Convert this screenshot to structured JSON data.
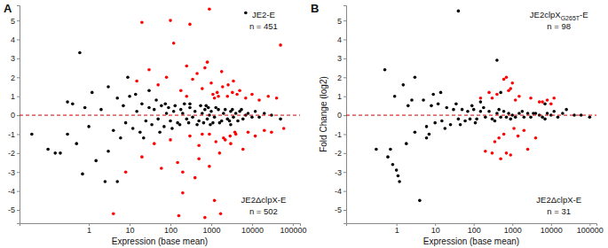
{
  "chart_data": [
    {
      "type": "scatter",
      "title": "A",
      "xlabel": "Expression (base mean)",
      "log": "x",
      "xlim": [
        0.02,
        150000
      ],
      "ylim": [
        -5.7,
        5.8
      ],
      "xticks": [
        1,
        10,
        100,
        1000,
        10000,
        100000
      ],
      "yticks": [
        -5,
        -4,
        -3,
        -2,
        -1,
        0,
        1,
        2,
        3,
        4,
        5
      ],
      "reference_lines": [
        {
          "y": 0,
          "color": "#cc0000",
          "line_style": "dashed"
        }
      ],
      "annotations": {
        "top": [
          "JE2-E",
          "n = 451"
        ],
        "bottom": [
          "JE2ΔclpX-E",
          "n = 502"
        ]
      },
      "series": [
        {
          "color": "#000000",
          "marker": "circle",
          "x": [
            0.04,
            0.1,
            0.2,
            0.3,
            0.5,
            0.6,
            0.8,
            1,
            1.2,
            1.5,
            2,
            2.5,
            3,
            4,
            5,
            6,
            7,
            8,
            10,
            12,
            15,
            18,
            20,
            25,
            30,
            35,
            40,
            50,
            60,
            70,
            80,
            90,
            100,
            120,
            150,
            180,
            200,
            250,
            300,
            350,
            400,
            500,
            600,
            700,
            800,
            900,
            1000,
            1200,
            1500,
            1800,
            2000,
            2500,
            3000,
            3500,
            4000,
            5000,
            6000,
            7000,
            8000,
            10000,
            12000,
            15000,
            20000,
            30000,
            50000,
            0.15,
            0.4,
            0.7,
            3,
            9,
            14,
            22,
            45,
            55,
            75,
            110,
            130,
            170,
            220,
            280,
            450,
            550,
            650,
            750,
            850,
            950,
            1100,
            1300,
            1600,
            2200,
            2800,
            3300,
            4500,
            5500,
            7000,
            0.3,
            5,
            30,
            300,
            3000
          ],
          "values": [
            -1.0,
            -1.8,
            -2.0,
            0.7,
            -1.5,
            3.3,
            0.4,
            -0.6,
            1.2,
            -2.4,
            0.3,
            -3.5,
            1.5,
            -0.8,
            0.9,
            -1.2,
            0.5,
            -0.4,
            1.0,
            -0.7,
            0.2,
            -0.9,
            0.6,
            -0.3,
            0.4,
            -0.5,
            0.3,
            -0.2,
            0.5,
            -0.6,
            0.1,
            0.4,
            -0.3,
            0.2,
            -0.4,
            0.3,
            0.1,
            -0.2,
            0.4,
            -0.1,
            0.2,
            -0.3,
            0.1,
            0.3,
            -0.2,
            0.0,
            0.2,
            -0.1,
            0.3,
            -0.3,
            0.1,
            -0.2,
            0.2,
            -0.1,
            0.1,
            0.2,
            -0.2,
            0.0,
            0.1,
            -0.1,
            0.2,
            -0.1,
            0.1,
            0.0,
            -0.2,
            -2.0,
            0.6,
            -3.1,
            -1.9,
            2.0,
            1.1,
            -1.2,
            0.8,
            -0.9,
            0.6,
            -0.7,
            0.5,
            -0.5,
            0.6,
            -0.4,
            -0.5,
            0.5,
            -0.4,
            0.5,
            0.4,
            -0.5,
            -0.4,
            0.4,
            -0.4,
            0.3,
            -0.3,
            0.3,
            -0.3,
            0.3,
            5.4,
            -1.0,
            -3.5,
            1.3,
            0.6,
            -0.5
          ]
        },
        {
          "color": "#ff0000",
          "marker": "circle",
          "x": [
            4,
            8,
            15,
            20,
            30,
            40,
            50,
            60,
            80,
            100,
            120,
            150,
            180,
            200,
            250,
            300,
            350,
            400,
            450,
            500,
            600,
            700,
            800,
            900,
            1000,
            1200,
            1400,
            1600,
            1800,
            2000,
            2500,
            3000,
            3500,
            4000,
            5000,
            6000,
            7000,
            8000,
            10000,
            12000,
            15000,
            20000,
            25000,
            30000,
            40000,
            50000,
            60000,
            100,
            200,
            300,
            500,
            700,
            900,
            1100,
            1300,
            1500,
            1700,
            1900,
            2200,
            2600,
            2900,
            3300,
            3800,
            4300,
            250,
            600,
            1200,
            900,
            160,
            20
          ],
          "values": [
            -5.2,
            -3.0,
            1.8,
            -2.2,
            2.4,
            -1.5,
            1.6,
            -2.8,
            2.0,
            -1.3,
            3.8,
            -2.5,
            1.3,
            -4.1,
            2.6,
            -1.1,
            1.9,
            -3.3,
            2.2,
            -1.6,
            1.4,
            -5.4,
            2.8,
            -1.0,
            1.7,
            -4.5,
            1.2,
            -2.0,
            2.3,
            -1.2,
            1.0,
            -1.5,
            1.8,
            -1.0,
            1.3,
            -1.8,
            0.9,
            -0.9,
            1.1,
            -1.1,
            0.8,
            -0.8,
            1.0,
            -0.9,
            0.9,
            3.7,
            -0.7,
            5.0,
            -3.0,
            4.8,
            -2.3,
            2.5,
            -2.7,
            1.1,
            -1.4,
            1.0,
            -5.2,
            1.5,
            -1.3,
            1.6,
            -1.1,
            1.2,
            -0.9,
            1.1,
            1.0,
            -1.0,
            0.9,
            5.6,
            -5.3,
            4.9
          ]
        }
      ]
    },
    {
      "type": "scatter",
      "title": "B",
      "xlabel": "Expression (base mean)",
      "ylabel": "Fold Change (log2)",
      "log": "x",
      "xlim": [
        0.05,
        150000
      ],
      "ylim": [
        -5.7,
        5.8
      ],
      "xticks": [
        1,
        10,
        100,
        1000,
        10000,
        100000
      ],
      "yticks": [
        -5,
        -4,
        -3,
        -2,
        -1,
        0,
        1,
        2,
        3,
        4,
        5
      ],
      "reference_lines": [
        {
          "y": 0,
          "color": "#cc0000",
          "line_style": "dashed"
        }
      ],
      "annotations": {
        "top": [
          {
            "text": "JE2clpXG265T-E",
            "subscript": "G265T"
          },
          "n = 98"
        ],
        "bottom": [
          "JE2ΔclpX-E",
          "n = 31"
        ]
      },
      "series": [
        {
          "color": "#000000",
          "marker": "circle",
          "x": [
            0.3,
            0.5,
            0.7,
            0.8,
            1,
            1.1,
            1.2,
            1.5,
            2,
            3,
            4,
            5,
            6,
            8,
            10,
            12,
            15,
            20,
            25,
            30,
            40,
            50,
            60,
            70,
            80,
            100,
            120,
            150,
            200,
            250,
            300,
            400,
            500,
            600,
            700,
            800,
            1000,
            1200,
            1500,
            2000,
            2500,
            3000,
            4000,
            5000,
            6000,
            8000,
            10000,
            15000,
            20000,
            40000,
            0.9,
            1.8,
            2.5,
            7,
            9,
            18,
            35,
            45,
            90,
            110,
            180,
            350,
            450,
            900,
            1800,
            3500,
            7000,
            12000,
            60000,
            100000,
            400,
            500,
            40,
            3,
            6,
            14,
            0.6,
            7000,
            25000,
            150
          ],
          "values": [
            -1.8,
            2.4,
            -1.8,
            -2.6,
            -2.9,
            -3.2,
            -3.5,
            1.6,
            0.5,
            -0.9,
            -4.5,
            0.8,
            -0.6,
            0.5,
            -0.4,
            0.6,
            -0.3,
            0.4,
            -0.5,
            0.3,
            -0.2,
            0.3,
            -0.3,
            0.2,
            -0.2,
            0.3,
            -0.2,
            0.2,
            -0.1,
            0.2,
            -0.2,
            0.1,
            -0.1,
            0.2,
            -0.1,
            0.1,
            0.0,
            -0.1,
            0.1,
            -0.1,
            0.1,
            -0.1,
            0.1,
            0.0,
            -0.1,
            0.1,
            0.0,
            -0.1,
            0.1,
            0.0,
            1.0,
            -1.5,
            0.8,
            -1.0,
            1.1,
            -0.7,
            0.6,
            -0.5,
            0.5,
            -0.4,
            0.4,
            -0.3,
            0.3,
            -0.2,
            0.2,
            0.1,
            -0.2,
            0.2,
            0.0,
            -0.1,
            2.9,
            1.2,
            5.5,
            2.0,
            -1.2,
            1.2,
            -2.2,
            0.6,
            0.3,
            0.7
          ]
        },
        {
          "color": "#ff0000",
          "marker": "circle",
          "x": [
            200,
            300,
            400,
            500,
            600,
            700,
            800,
            900,
            1000,
            1200,
            1500,
            2000,
            3000,
            4000,
            5000,
            8000,
            12000,
            300,
            600,
            900,
            1400,
            2500,
            6000,
            450,
            700,
            1100,
            250,
            350,
            10000,
            150
          ],
          "values": [
            -1.9,
            -2.0,
            1.1,
            -2.3,
            1.9,
            -2.0,
            1.3,
            -2.1,
            1.7,
            0.8,
            1.0,
            -0.8,
            0.9,
            -1.2,
            0.7,
            0.8,
            0.9,
            0.9,
            -1.0,
            1.4,
            -1.1,
            -1.8,
            0.7,
            -1.2,
            2.0,
            -0.7,
            1.2,
            -1.4,
            0.6,
            0.9
          ]
        }
      ]
    }
  ]
}
